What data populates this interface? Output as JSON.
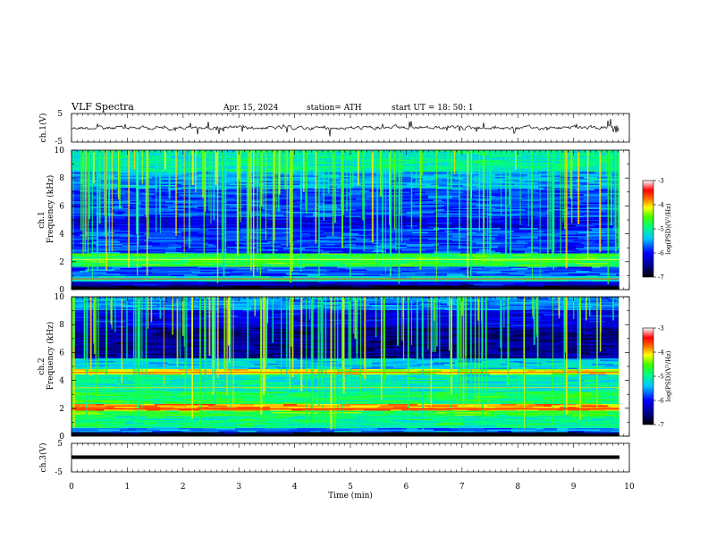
{
  "header": {
    "title": "VLF  Spectra",
    "date": "Apr. 15, 2024",
    "station": "station= ATH",
    "start": "start  UT  =    18: 50: 1"
  },
  "chart_data": [
    {
      "id": "ch1-waveform",
      "type": "line",
      "ylabel": "ch.1(V)",
      "ylim": [
        -5,
        5
      ],
      "yticks": [
        "5",
        "-5"
      ],
      "xlim": [
        0,
        10
      ]
    },
    {
      "id": "ch1-spectrogram",
      "type": "heatmap",
      "ylabel": "ch.1\nFrequency (kHz)",
      "ylim": [
        0,
        10
      ],
      "yticks": [
        "0",
        "2",
        "4",
        "6",
        "8",
        "10"
      ],
      "xlim": [
        0,
        10
      ],
      "colorbar": {
        "label": "log(PSD)(V²/Hz)",
        "range": [
          -7,
          -3
        ],
        "ticks": [
          "-3",
          "-4",
          "-5",
          "-6",
          "-7"
        ]
      }
    },
    {
      "id": "ch2-spectrogram",
      "type": "heatmap",
      "ylabel": "ch.2\nFrequency (kHz)",
      "ylim": [
        0,
        10
      ],
      "yticks": [
        "0",
        "2",
        "4",
        "6",
        "8",
        "10"
      ],
      "xlim": [
        0,
        10
      ],
      "colorbar": {
        "label": "log(PSD)(V²/Hz)",
        "range": [
          -7,
          -3
        ],
        "ticks": [
          "-3",
          "-4",
          "-5",
          "-6",
          "-7"
        ]
      }
    },
    {
      "id": "ch3-waveform",
      "type": "line",
      "ylabel": "ch.3(V)",
      "ylim": [
        -5,
        5
      ],
      "yticks": [
        "5",
        "-5"
      ],
      "xlim": [
        0,
        10
      ]
    }
  ],
  "xaxis": {
    "label": "Time  (min)",
    "ticks": [
      "0",
      "1",
      "2",
      "3",
      "4",
      "5",
      "6",
      "7",
      "8",
      "9",
      "10"
    ],
    "range": [
      0,
      10
    ],
    "data_end": 9.82
  },
  "labels": {
    "ch1_wave": "ch.1(V)",
    "ch1_spec_a": "ch.1",
    "ch1_spec_b": "Frequency  (kHz)",
    "ch2_spec_a": "ch.2",
    "ch2_spec_b": "Frequency  (kHz)",
    "ch3_wave": "ch.3(V)",
    "cbar": "log(PSD)(V²/Hz)"
  }
}
